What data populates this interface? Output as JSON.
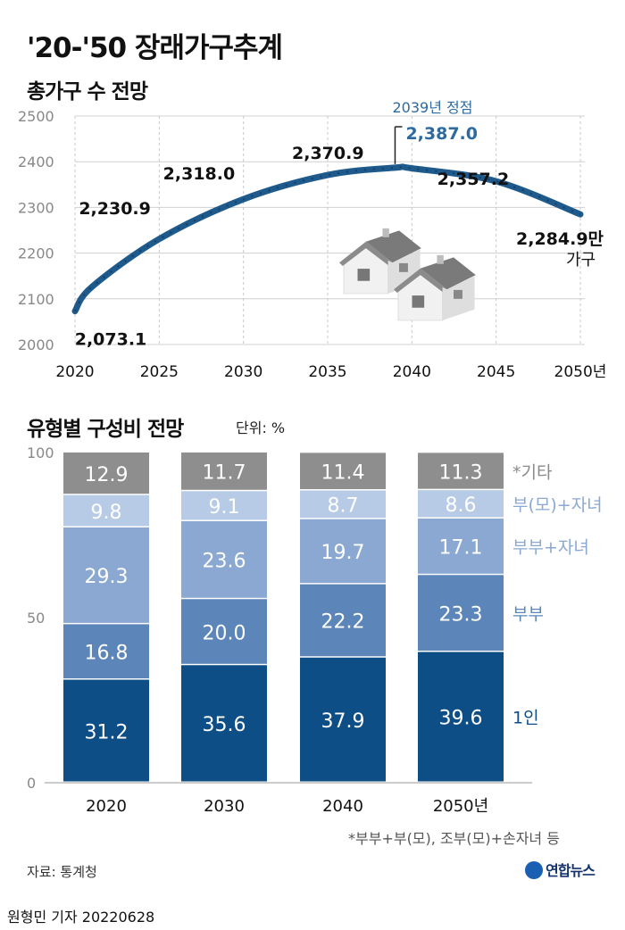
{
  "title": "'20-'50 장래가구추계",
  "source": "자료: 통계청",
  "byline": "원형민 기자  20220628",
  "logo": "연합뉴스",
  "footnote": "*부부+부(모), 조부(모)+손자녀 등",
  "colors": {
    "line": "#1f5a8c",
    "peak_label": "#2c6aa0",
    "grid": "#d0d0d0",
    "seg_1in": "#0e4e86",
    "seg_couple": "#5c86b9",
    "seg_couple_child": "#8aa8d1",
    "seg_single_parent": "#b7cbe6",
    "seg_other": "#8e8e8e",
    "legend_other": "#8a8a8a"
  },
  "chart_data": [
    {
      "type": "line",
      "title": "총가구 수 전망",
      "x": [
        2020,
        2021,
        2025,
        2030,
        2035,
        2039,
        2040,
        2045,
        2050
      ],
      "y": [
        2073.1,
        2126.0,
        2230.9,
        2318.0,
        2370.9,
        2387.0,
        2385.5,
        2357.2,
        2284.9
      ],
      "xticks": [
        "2020",
        "2025",
        "2030",
        "2035",
        "2040",
        "2045",
        "2050년"
      ],
      "xtick_values": [
        2020,
        2025,
        2030,
        2035,
        2040,
        2045,
        2050
      ],
      "yticks": [
        2000,
        2100,
        2200,
        2300,
        2400,
        2500
      ],
      "ylim": [
        2000,
        2500
      ],
      "xlim": [
        2020,
        2050
      ],
      "grid": true,
      "peak_year": 2039,
      "peak_caption": "2039년 정점",
      "labels": [
        {
          "x": 2020,
          "y": 2073.1,
          "text": "2,073.1"
        },
        {
          "x": 2025,
          "y": 2230.9,
          "text": "2,230.9"
        },
        {
          "x": 2030,
          "y": 2318.0,
          "text": "2,318.0"
        },
        {
          "x": 2035,
          "y": 2370.9,
          "text": "2,370.9"
        },
        {
          "x": 2039,
          "y": 2387.0,
          "text": "2,387.0"
        },
        {
          "x": 2045,
          "y": 2357.2,
          "text": "2,357.2"
        },
        {
          "x": 2050,
          "y": 2284.9,
          "text": "2,284.9만"
        }
      ],
      "unit_label": "가구"
    },
    {
      "type": "bar",
      "stacked": true,
      "title": "유형별 구성비 전망",
      "unit": "단위: %",
      "categories": [
        "2020",
        "2030",
        "2040",
        "2050년"
      ],
      "ylim": [
        0,
        100
      ],
      "yticks": [
        0,
        50,
        100
      ],
      "series": [
        {
          "name": "1인",
          "values": [
            31.2,
            35.6,
            37.9,
            39.6
          ]
        },
        {
          "name": "부부",
          "values": [
            16.8,
            20.0,
            22.2,
            23.3
          ]
        },
        {
          "name": "부부+자녀",
          "values": [
            29.3,
            23.6,
            19.7,
            17.1
          ]
        },
        {
          "name": "부(모)+자녀",
          "values": [
            9.8,
            9.1,
            8.7,
            8.6
          ]
        },
        {
          "name": "*기타",
          "values": [
            12.9,
            11.7,
            11.4,
            11.3
          ]
        }
      ]
    }
  ]
}
